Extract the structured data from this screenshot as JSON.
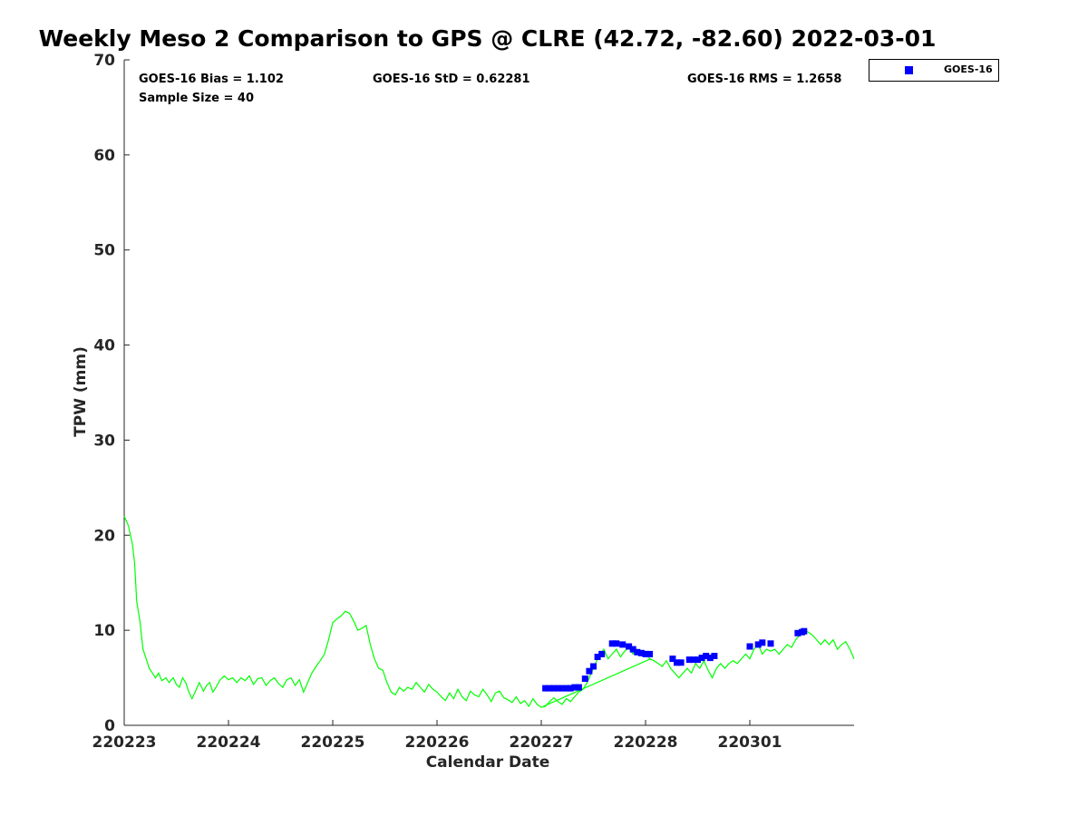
{
  "colors": {
    "gps_line": "#00ff00",
    "goes_marker": "#0000ff",
    "axis": "#262626"
  },
  "chart_data": {
    "type": "scatter",
    "title": "Weekly Meso 2 Comparison to GPS @ CLRE (42.72, -82.60) 2022-03-01",
    "xlabel": "Calendar Date",
    "ylabel": "TPW (mm)",
    "xlim": [
      0,
      7
    ],
    "ylim": [
      0,
      70
    ],
    "x_unit": "days since 220223",
    "x_ticks": [
      {
        "x": 0,
        "label": "220223"
      },
      {
        "x": 1,
        "label": "220224"
      },
      {
        "x": 2,
        "label": "220225"
      },
      {
        "x": 3,
        "label": "220226"
      },
      {
        "x": 4,
        "label": "220227"
      },
      {
        "x": 5,
        "label": "220228"
      },
      {
        "x": 6,
        "label": "220301"
      }
    ],
    "y_ticks": [
      0,
      10,
      20,
      30,
      40,
      50,
      60,
      70
    ],
    "grid": false,
    "legend": {
      "position": "outside-top-right",
      "entries": [
        "GOES-16"
      ]
    },
    "stats": {
      "bias": "GOES-16 Bias = 1.102",
      "std": "GOES-16 StD = 0.62281",
      "rms": "GOES-16 RMS = 1.2658",
      "sample": "Sample Size = 40"
    },
    "series": [
      {
        "name": "GPS",
        "style": "line",
        "points": [
          [
            0.0,
            22.0
          ],
          [
            0.04,
            21.0
          ],
          [
            0.08,
            19.0
          ],
          [
            0.1,
            17.0
          ],
          [
            0.12,
            13.0
          ],
          [
            0.15,
            11.0
          ],
          [
            0.18,
            8.0
          ],
          [
            0.21,
            7.0
          ],
          [
            0.24,
            6.0
          ],
          [
            0.27,
            5.5
          ],
          [
            0.3,
            5.0
          ],
          [
            0.33,
            5.5
          ],
          [
            0.36,
            4.7
          ],
          [
            0.4,
            5.0
          ],
          [
            0.43,
            4.5
          ],
          [
            0.47,
            5.0
          ],
          [
            0.5,
            4.3
          ],
          [
            0.53,
            4.0
          ],
          [
            0.56,
            5.0
          ],
          [
            0.59,
            4.5
          ],
          [
            0.62,
            3.5
          ],
          [
            0.65,
            2.8
          ],
          [
            0.68,
            3.5
          ],
          [
            0.72,
            4.5
          ],
          [
            0.76,
            3.6
          ],
          [
            0.79,
            4.2
          ],
          [
            0.82,
            4.5
          ],
          [
            0.85,
            3.5
          ],
          [
            0.88,
            4.0
          ],
          [
            0.92,
            4.8
          ],
          [
            0.96,
            5.2
          ],
          [
            1.0,
            4.8
          ],
          [
            1.04,
            5.0
          ],
          [
            1.08,
            4.5
          ],
          [
            1.12,
            5.0
          ],
          [
            1.16,
            4.7
          ],
          [
            1.2,
            5.2
          ],
          [
            1.24,
            4.3
          ],
          [
            1.28,
            4.9
          ],
          [
            1.32,
            5.0
          ],
          [
            1.36,
            4.2
          ],
          [
            1.4,
            4.7
          ],
          [
            1.44,
            5.0
          ],
          [
            1.48,
            4.4
          ],
          [
            1.52,
            4.0
          ],
          [
            1.56,
            4.8
          ],
          [
            1.6,
            5.0
          ],
          [
            1.64,
            4.2
          ],
          [
            1.68,
            4.8
          ],
          [
            1.72,
            3.5
          ],
          [
            1.76,
            4.5
          ],
          [
            1.8,
            5.5
          ],
          [
            1.84,
            6.2
          ],
          [
            1.88,
            6.8
          ],
          [
            1.92,
            7.5
          ],
          [
            1.96,
            9.0
          ],
          [
            2.0,
            10.8
          ],
          [
            2.04,
            11.2
          ],
          [
            2.08,
            11.5
          ],
          [
            2.12,
            12.0
          ],
          [
            2.16,
            11.8
          ],
          [
            2.2,
            11.0
          ],
          [
            2.24,
            10.0
          ],
          [
            2.28,
            10.2
          ],
          [
            2.32,
            10.5
          ],
          [
            2.36,
            8.5
          ],
          [
            2.4,
            7.0
          ],
          [
            2.44,
            6.0
          ],
          [
            2.48,
            5.8
          ],
          [
            2.52,
            4.5
          ],
          [
            2.56,
            3.5
          ],
          [
            2.6,
            3.2
          ],
          [
            2.64,
            4.0
          ],
          [
            2.68,
            3.6
          ],
          [
            2.72,
            4.0
          ],
          [
            2.76,
            3.8
          ],
          [
            2.8,
            4.5
          ],
          [
            2.84,
            4.0
          ],
          [
            2.88,
            3.5
          ],
          [
            2.92,
            4.3
          ],
          [
            2.96,
            3.8
          ],
          [
            3.0,
            3.5
          ],
          [
            3.04,
            3.0
          ],
          [
            3.08,
            2.6
          ],
          [
            3.12,
            3.4
          ],
          [
            3.16,
            2.8
          ],
          [
            3.2,
            3.8
          ],
          [
            3.24,
            3.0
          ],
          [
            3.28,
            2.6
          ],
          [
            3.32,
            3.6
          ],
          [
            3.36,
            3.2
          ],
          [
            3.4,
            3.0
          ],
          [
            3.44,
            3.8
          ],
          [
            3.48,
            3.2
          ],
          [
            3.52,
            2.5
          ],
          [
            3.56,
            3.4
          ],
          [
            3.6,
            3.6
          ],
          [
            3.64,
            2.9
          ],
          [
            3.68,
            2.7
          ],
          [
            3.72,
            2.4
          ],
          [
            3.76,
            3.0
          ],
          [
            3.8,
            2.3
          ],
          [
            3.84,
            2.6
          ],
          [
            3.88,
            2.0
          ],
          [
            3.92,
            2.8
          ],
          [
            3.96,
            2.2
          ],
          [
            4.0,
            1.9
          ],
          [
            4.04,
            2.0
          ],
          [
            4.08,
            2.5
          ],
          [
            4.12,
            2.9
          ],
          [
            4.16,
            2.5
          ],
          [
            4.2,
            2.2
          ],
          [
            4.24,
            2.8
          ],
          [
            4.28,
            2.5
          ],
          [
            4.32,
            3.0
          ],
          [
            4.36,
            3.5
          ],
          [
            4.4,
            3.8
          ],
          [
            4.44,
            4.5
          ],
          [
            4.48,
            5.5
          ],
          [
            4.52,
            6.5
          ],
          [
            4.56,
            7.5
          ],
          [
            4.6,
            8.0
          ],
          [
            4.64,
            7.0
          ],
          [
            4.68,
            7.5
          ],
          [
            4.72,
            8.0
          ],
          [
            4.76,
            7.2
          ],
          [
            4.8,
            7.8
          ],
          [
            4.84,
            8.2
          ],
          [
            4.88,
            7.5
          ],
          [
            4.92,
            8.0
          ],
          [
            4.96,
            7.6
          ],
          [
            5.0,
            7.8
          ],
          [
            5.04,
            7.0
          ],
          [
            5.08,
            6.8
          ],
          [
            5.12,
            6.5
          ],
          [
            5.16,
            6.2
          ],
          [
            5.2,
            6.8
          ],
          [
            5.24,
            6.0
          ],
          [
            5.28,
            5.5
          ],
          [
            5.32,
            5.0
          ],
          [
            5.36,
            5.5
          ],
          [
            5.4,
            6.0
          ],
          [
            5.44,
            5.5
          ],
          [
            5.48,
            6.5
          ],
          [
            5.52,
            6.0
          ],
          [
            5.56,
            6.8
          ],
          [
            5.6,
            5.8
          ],
          [
            5.64,
            5.0
          ],
          [
            5.68,
            6.0
          ],
          [
            5.72,
            6.5
          ],
          [
            5.76,
            6.0
          ],
          [
            5.8,
            6.5
          ],
          [
            5.84,
            6.8
          ],
          [
            5.88,
            6.5
          ],
          [
            5.92,
            7.0
          ],
          [
            5.96,
            7.5
          ],
          [
            6.0,
            7.0
          ],
          [
            6.04,
            8.0
          ],
          [
            6.08,
            8.5
          ],
          [
            6.12,
            7.5
          ],
          [
            6.16,
            8.0
          ],
          [
            6.2,
            7.8
          ],
          [
            6.24,
            8.0
          ],
          [
            6.28,
            7.5
          ],
          [
            6.32,
            8.0
          ],
          [
            6.36,
            8.5
          ],
          [
            6.4,
            8.2
          ],
          [
            6.44,
            9.0
          ],
          [
            6.48,
            9.5
          ],
          [
            6.52,
            10.0
          ],
          [
            6.56,
            9.8
          ],
          [
            6.6,
            9.5
          ],
          [
            6.64,
            9.0
          ],
          [
            6.68,
            8.5
          ],
          [
            6.72,
            9.0
          ],
          [
            6.76,
            8.5
          ],
          [
            6.8,
            9.0
          ],
          [
            6.84,
            8.0
          ],
          [
            6.88,
            8.5
          ],
          [
            6.92,
            8.8
          ],
          [
            6.96,
            8.0
          ],
          [
            7.0,
            7.0
          ]
        ]
      },
      {
        "name": "GOES-16",
        "style": "markers",
        "points": [
          [
            4.04,
            3.9
          ],
          [
            4.08,
            3.9
          ],
          [
            4.12,
            3.9
          ],
          [
            4.16,
            3.9
          ],
          [
            4.2,
            3.9
          ],
          [
            4.24,
            3.9
          ],
          [
            4.28,
            3.9
          ],
          [
            4.32,
            4.0
          ],
          [
            4.36,
            4.0
          ],
          [
            4.42,
            4.9
          ],
          [
            4.46,
            5.7
          ],
          [
            4.5,
            6.2
          ],
          [
            4.54,
            7.2
          ],
          [
            4.58,
            7.5
          ],
          [
            4.68,
            8.6
          ],
          [
            4.72,
            8.6
          ],
          [
            4.78,
            8.5
          ],
          [
            4.84,
            8.3
          ],
          [
            4.88,
            8.0
          ],
          [
            4.92,
            7.7
          ],
          [
            4.96,
            7.6
          ],
          [
            5.0,
            7.5
          ],
          [
            5.04,
            7.5
          ],
          [
            5.26,
            7.0
          ],
          [
            5.3,
            6.6
          ],
          [
            5.34,
            6.6
          ],
          [
            5.42,
            6.9
          ],
          [
            5.46,
            6.9
          ],
          [
            5.5,
            6.9
          ],
          [
            5.54,
            7.1
          ],
          [
            5.58,
            7.3
          ],
          [
            5.62,
            7.1
          ],
          [
            5.66,
            7.3
          ],
          [
            6.0,
            8.3
          ],
          [
            6.08,
            8.5
          ],
          [
            6.12,
            8.7
          ],
          [
            6.2,
            8.6
          ],
          [
            6.46,
            9.7
          ],
          [
            6.5,
            9.8
          ],
          [
            6.52,
            9.9
          ]
        ]
      }
    ]
  }
}
